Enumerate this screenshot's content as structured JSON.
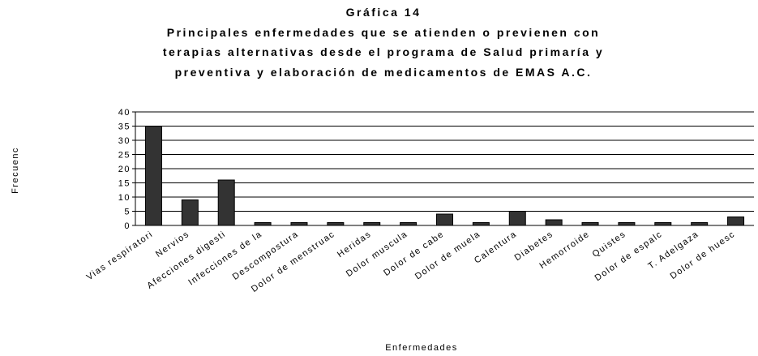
{
  "chart_data": {
    "type": "bar",
    "title": "Gráfica 14",
    "subtitle": [
      "Principales enfermedades que se atienden o previenen con",
      "terapias alternativas desde el programa de Salud primaría y",
      "preventiva y elaboración de medicamentos de EMAS A.C."
    ],
    "x_label": "Enfermedades",
    "y_label": "Frecuenc",
    "categories": [
      "Vias respiratori",
      "Nervios",
      "Afecciones digesti",
      "Infecciones de la",
      "Descompostura",
      "Dolor de menstruac",
      "Heridas",
      "Dolor muscula",
      "Dolor de cabe",
      "Dolor de muela",
      "Calentura",
      "Diabetes",
      "Hemorroide",
      "Quistes",
      "Dolor de espalc",
      "T. Adelgaza",
      "Dolor de huesc"
    ],
    "values": [
      35,
      9,
      16,
      1,
      1,
      1,
      1,
      1,
      4,
      1,
      5,
      2,
      1,
      1,
      1,
      1,
      3
    ],
    "color": "#333333",
    "ylim": [
      0,
      40
    ],
    "yticks": [
      0,
      5,
      10,
      15,
      20,
      25,
      30,
      35,
      40
    ],
    "grid": true
  }
}
